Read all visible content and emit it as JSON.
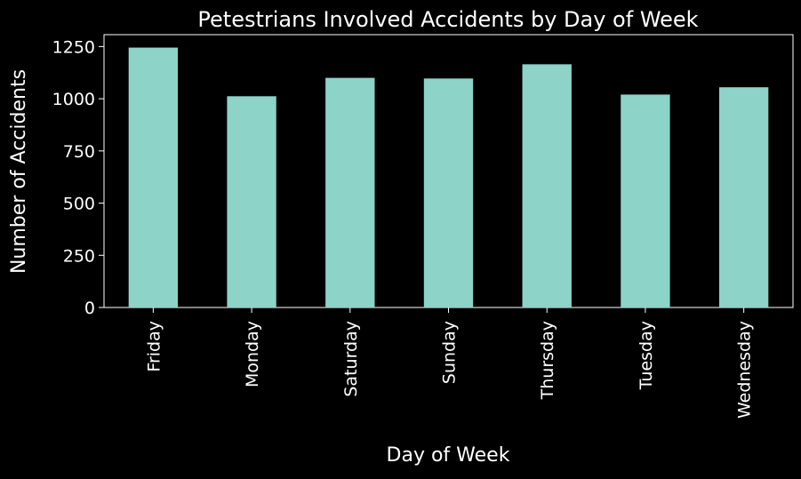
{
  "chart_data": {
    "type": "bar",
    "title": "Petestrians Involved Accidents by Day of Week",
    "xlabel": "Day of Week",
    "ylabel": "Number of Accidents",
    "categories": [
      "Friday",
      "Monday",
      "Saturday",
      "Sunday",
      "Thursday",
      "Tuesday",
      "Wednesday"
    ],
    "values": [
      1245,
      1012,
      1100,
      1097,
      1165,
      1020,
      1055
    ],
    "yticks": [
      0,
      250,
      500,
      750,
      1000,
      1250
    ],
    "ylim": [
      0,
      1307
    ],
    "grid": false,
    "legend": "none",
    "colors": {
      "background": "#000000",
      "bar": "#8dd3c7",
      "text": "#ffffff",
      "axis": "#ffffff"
    }
  }
}
